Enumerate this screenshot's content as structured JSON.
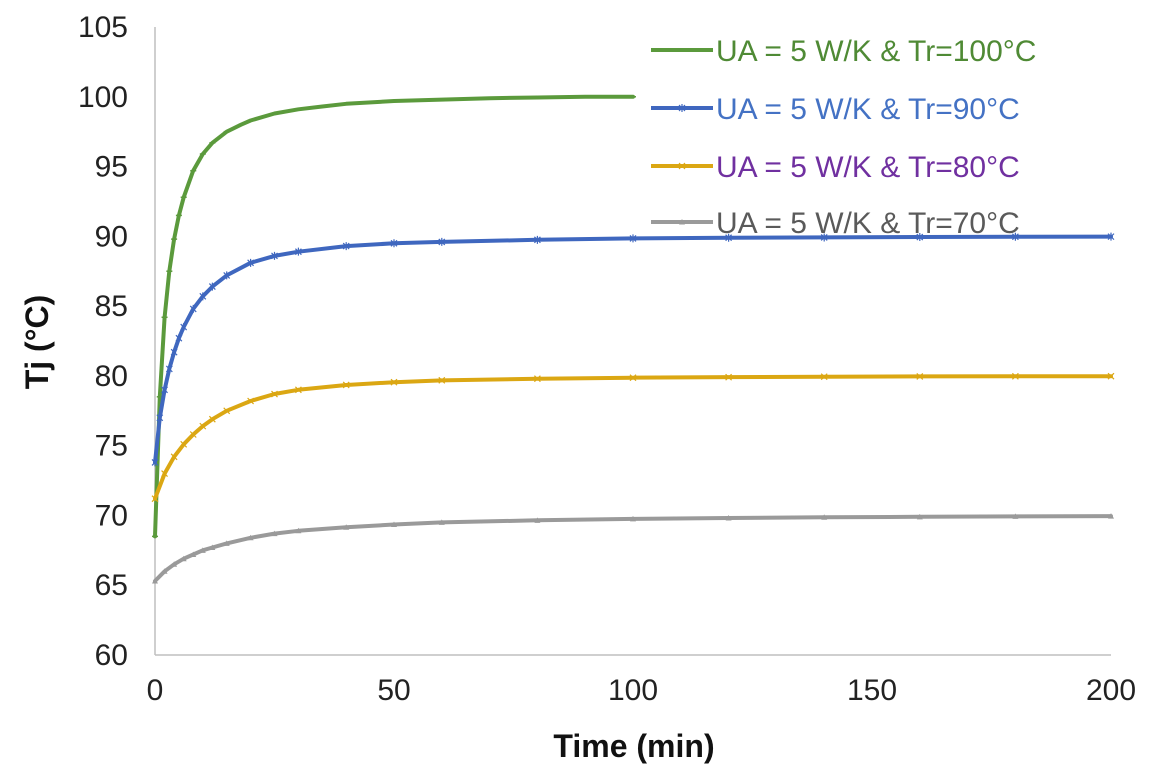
{
  "chart_data": {
    "type": "line",
    "title": "",
    "xlabel": "Time (min)",
    "ylabel": "Tj (°C)",
    "xlim": [
      0,
      200
    ],
    "ylim": [
      60,
      105
    ],
    "xticks": [
      "0",
      "50",
      "100",
      "150",
      "200"
    ],
    "yticks": [
      "60",
      "65",
      "70",
      "75",
      "80",
      "85",
      "90",
      "95",
      "100",
      "105"
    ],
    "grid": false,
    "legend_position": "top-right",
    "series": [
      {
        "name": "UA = 5 W/K & Tr=100°C",
        "color": "#5b9a3c",
        "label_color": "#4f8a35",
        "marker": "dash",
        "x": [
          0,
          1,
          2,
          3,
          4,
          5,
          6,
          8,
          10,
          12,
          15,
          18,
          20,
          25,
          30,
          35,
          40,
          50,
          60,
          70,
          80,
          90,
          100
        ],
        "y": [
          68.5,
          78.5,
          84.2,
          87.5,
          89.8,
          91.5,
          92.8,
          94.7,
          95.9,
          96.7,
          97.5,
          98.0,
          98.3,
          98.8,
          99.1,
          99.3,
          99.5,
          99.7,
          99.8,
          99.9,
          99.95,
          100.0,
          100.0
        ]
      },
      {
        "name": "UA = 5 W/K & Tr=90°C",
        "color": "#3f67bf",
        "label_color": "#4472c4",
        "marker": "star",
        "x": [
          0,
          1,
          2,
          3,
          4,
          5,
          6,
          8,
          10,
          12,
          15,
          20,
          25,
          30,
          40,
          50,
          60,
          80,
          100,
          120,
          140,
          160,
          180,
          200
        ],
        "y": [
          73.8,
          77.0,
          79.0,
          80.5,
          81.7,
          82.7,
          83.5,
          84.8,
          85.7,
          86.4,
          87.2,
          88.1,
          88.6,
          88.9,
          89.3,
          89.5,
          89.6,
          89.75,
          89.85,
          89.9,
          89.92,
          89.95,
          89.97,
          89.98
        ]
      },
      {
        "name": "UA = 5 W/K & Tr=80°C",
        "color": "#dba713",
        "label_color": "#7030a0",
        "marker": "x",
        "x": [
          0,
          2,
          4,
          6,
          8,
          10,
          12,
          15,
          20,
          25,
          30,
          40,
          50,
          60,
          80,
          100,
          120,
          140,
          160,
          180,
          200
        ],
        "y": [
          71.2,
          73.0,
          74.2,
          75.1,
          75.8,
          76.4,
          76.9,
          77.5,
          78.2,
          78.7,
          79.0,
          79.35,
          79.55,
          79.68,
          79.8,
          79.87,
          79.91,
          79.94,
          79.96,
          79.97,
          79.98
        ]
      },
      {
        "name": "UA = 5 W/K & Tr=70°C",
        "color": "#9a9a9a",
        "label_color": "#5a5a5a",
        "marker": "triangle",
        "x": [
          0,
          2,
          4,
          6,
          8,
          10,
          12,
          15,
          20,
          25,
          30,
          40,
          50,
          60,
          80,
          100,
          120,
          140,
          160,
          180,
          200
        ],
        "y": [
          65.3,
          66.0,
          66.5,
          66.9,
          67.2,
          67.5,
          67.7,
          68.0,
          68.4,
          68.7,
          68.9,
          69.15,
          69.35,
          69.5,
          69.65,
          69.75,
          69.82,
          69.87,
          69.9,
          69.93,
          69.95
        ]
      }
    ]
  }
}
